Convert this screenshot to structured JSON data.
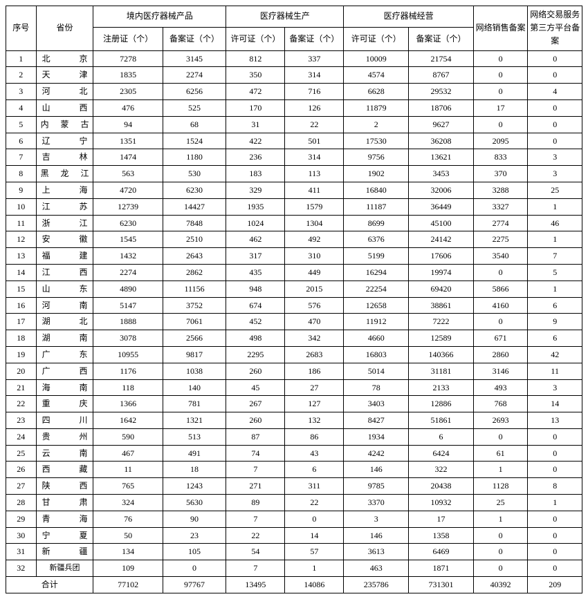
{
  "headers": {
    "index": "序号",
    "province": "省份",
    "group_products": "境内医疗器械产品",
    "group_manufacture": "医疗器械生产",
    "group_operation": "医疗器械经营",
    "reg_cert": "注册证（个）",
    "record_cert1": "备案证（个）",
    "license1": "许可证（个）",
    "record_cert2": "备案证（个）",
    "license2": "许可证（个）",
    "record_cert3": "备案证（个）",
    "net_sales": "网络销售备案",
    "net_platform": "网络交易服务第三方平台备案"
  },
  "rows": [
    {
      "idx": "1",
      "prov": "北京",
      "ptype": "2",
      "c": [
        "7278",
        "3145",
        "812",
        "337",
        "10009",
        "21754",
        "0",
        "0"
      ]
    },
    {
      "idx": "2",
      "prov": "天津",
      "ptype": "2",
      "c": [
        "1835",
        "2274",
        "350",
        "314",
        "4574",
        "8767",
        "0",
        "0"
      ]
    },
    {
      "idx": "3",
      "prov": "河北",
      "ptype": "2",
      "c": [
        "2305",
        "6256",
        "472",
        "716",
        "6628",
        "29532",
        "0",
        "4"
      ]
    },
    {
      "idx": "4",
      "prov": "山西",
      "ptype": "2",
      "c": [
        "476",
        "525",
        "170",
        "126",
        "11879",
        "18706",
        "17",
        "0"
      ]
    },
    {
      "idx": "5",
      "prov": "内蒙古",
      "ptype": "3",
      "c": [
        "94",
        "68",
        "31",
        "22",
        "2",
        "9627",
        "0",
        "0"
      ]
    },
    {
      "idx": "6",
      "prov": "辽宁",
      "ptype": "2",
      "c": [
        "1351",
        "1524",
        "422",
        "501",
        "17530",
        "36208",
        "2095",
        "0"
      ]
    },
    {
      "idx": "7",
      "prov": "吉林",
      "ptype": "2",
      "c": [
        "1474",
        "1180",
        "236",
        "314",
        "9756",
        "13621",
        "833",
        "3"
      ]
    },
    {
      "idx": "8",
      "prov": "黑龙江",
      "ptype": "3",
      "c": [
        "563",
        "530",
        "183",
        "113",
        "1902",
        "3453",
        "370",
        "3"
      ]
    },
    {
      "idx": "9",
      "prov": "上海",
      "ptype": "2",
      "c": [
        "4720",
        "6230",
        "329",
        "411",
        "16840",
        "32006",
        "3288",
        "25"
      ]
    },
    {
      "idx": "10",
      "prov": "江苏",
      "ptype": "2",
      "c": [
        "12739",
        "14427",
        "1935",
        "1579",
        "11187",
        "36449",
        "3327",
        "1"
      ]
    },
    {
      "idx": "11",
      "prov": "浙江",
      "ptype": "2",
      "c": [
        "6230",
        "7848",
        "1024",
        "1304",
        "8699",
        "45100",
        "2774",
        "46"
      ]
    },
    {
      "idx": "12",
      "prov": "安徽",
      "ptype": "2",
      "c": [
        "1545",
        "2510",
        "462",
        "492",
        "6376",
        "24142",
        "2275",
        "1"
      ]
    },
    {
      "idx": "13",
      "prov": "福建",
      "ptype": "2",
      "c": [
        "1432",
        "2643",
        "317",
        "310",
        "5199",
        "17606",
        "3540",
        "7"
      ]
    },
    {
      "idx": "14",
      "prov": "江西",
      "ptype": "2",
      "c": [
        "2274",
        "2862",
        "435",
        "449",
        "16294",
        "19974",
        "0",
        "5"
      ]
    },
    {
      "idx": "15",
      "prov": "山东",
      "ptype": "2",
      "c": [
        "4890",
        "11156",
        "948",
        "2015",
        "22254",
        "69420",
        "5866",
        "1"
      ]
    },
    {
      "idx": "16",
      "prov": "河南",
      "ptype": "2",
      "c": [
        "5147",
        "3752",
        "674",
        "576",
        "12658",
        "38861",
        "4160",
        "6"
      ]
    },
    {
      "idx": "17",
      "prov": "湖北",
      "ptype": "2",
      "c": [
        "1888",
        "7061",
        "452",
        "470",
        "11912",
        "7222",
        "0",
        "9"
      ]
    },
    {
      "idx": "18",
      "prov": "湖南",
      "ptype": "2",
      "c": [
        "3078",
        "2566",
        "498",
        "342",
        "4660",
        "12589",
        "671",
        "6"
      ]
    },
    {
      "idx": "19",
      "prov": "广东",
      "ptype": "2",
      "c": [
        "10955",
        "9817",
        "2295",
        "2683",
        "16803",
        "140366",
        "2860",
        "42"
      ]
    },
    {
      "idx": "20",
      "prov": "广西",
      "ptype": "2",
      "c": [
        "1176",
        "1038",
        "260",
        "186",
        "5014",
        "31181",
        "3146",
        "11"
      ]
    },
    {
      "idx": "21",
      "prov": "海南",
      "ptype": "2",
      "c": [
        "118",
        "140",
        "45",
        "27",
        "78",
        "2133",
        "493",
        "3"
      ]
    },
    {
      "idx": "22",
      "prov": "重庆",
      "ptype": "2",
      "c": [
        "1366",
        "781",
        "267",
        "127",
        "3403",
        "12886",
        "768",
        "14"
      ]
    },
    {
      "idx": "23",
      "prov": "四川",
      "ptype": "2",
      "c": [
        "1642",
        "1321",
        "260",
        "132",
        "8427",
        "51861",
        "2693",
        "13"
      ]
    },
    {
      "idx": "24",
      "prov": "贵州",
      "ptype": "2",
      "c": [
        "590",
        "513",
        "87",
        "86",
        "1934",
        "6",
        "0",
        "0"
      ]
    },
    {
      "idx": "25",
      "prov": "云南",
      "ptype": "2",
      "c": [
        "467",
        "491",
        "74",
        "43",
        "4242",
        "6424",
        "61",
        "0"
      ]
    },
    {
      "idx": "26",
      "prov": "西藏",
      "ptype": "2",
      "c": [
        "11",
        "18",
        "7",
        "6",
        "146",
        "322",
        "1",
        "0"
      ]
    },
    {
      "idx": "27",
      "prov": "陕西",
      "ptype": "2",
      "c": [
        "765",
        "1243",
        "271",
        "311",
        "9785",
        "20438",
        "1128",
        "8"
      ]
    },
    {
      "idx": "28",
      "prov": "甘肃",
      "ptype": "2",
      "c": [
        "324",
        "5630",
        "89",
        "22",
        "3370",
        "10932",
        "25",
        "1"
      ]
    },
    {
      "idx": "29",
      "prov": "青海",
      "ptype": "2",
      "c": [
        "76",
        "90",
        "7",
        "0",
        "3",
        "17",
        "1",
        "0"
      ]
    },
    {
      "idx": "30",
      "prov": "宁夏",
      "ptype": "2",
      "c": [
        "50",
        "23",
        "22",
        "14",
        "146",
        "1358",
        "0",
        "0"
      ]
    },
    {
      "idx": "31",
      "prov": "新疆",
      "ptype": "2",
      "c": [
        "134",
        "105",
        "54",
        "57",
        "3613",
        "6469",
        "0",
        "0"
      ]
    },
    {
      "idx": "32",
      "prov": "新疆兵团",
      "ptype": "long",
      "c": [
        "109",
        "0",
        "7",
        "1",
        "463",
        "1871",
        "0",
        "0"
      ]
    }
  ],
  "total": {
    "label": "合计",
    "c": [
      "77102",
      "97767",
      "13495",
      "14086",
      "235786",
      "731301",
      "40392",
      "209"
    ]
  }
}
